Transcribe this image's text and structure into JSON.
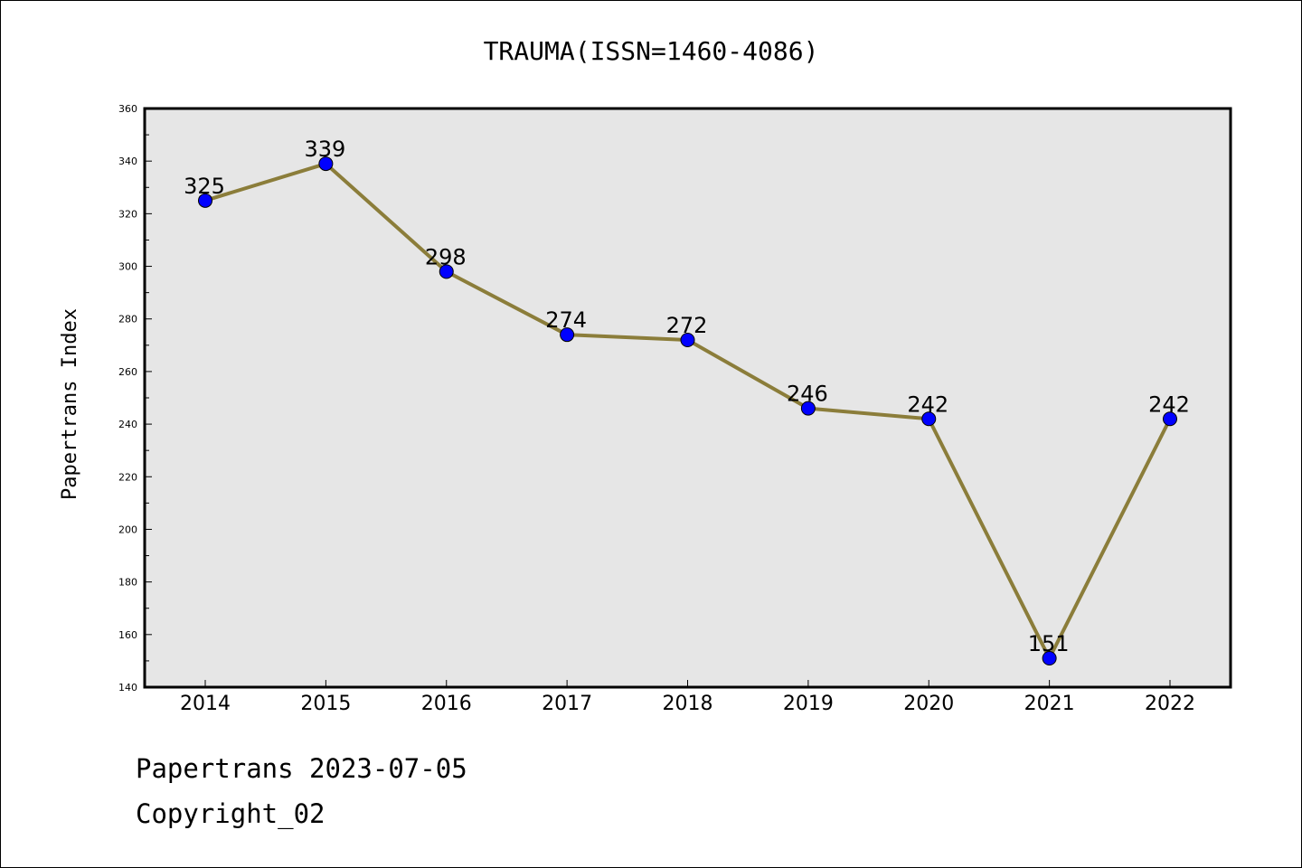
{
  "chart_data": {
    "type": "line",
    "title": "TRAUMA(ISSN=1460-4086)",
    "xlabel": "",
    "ylabel": "Papertrans Index",
    "categories": [
      "2014",
      "2015",
      "2016",
      "2017",
      "2018",
      "2019",
      "2020",
      "2021",
      "2022"
    ],
    "values": [
      325,
      339,
      298,
      274,
      272,
      246,
      242,
      151,
      242
    ],
    "data_labels": [
      "325",
      "339",
      "298",
      "274",
      "272",
      "246",
      "242",
      "151",
      "242"
    ],
    "ylim": [
      140,
      360
    ],
    "yticks": [
      140,
      160,
      180,
      200,
      220,
      240,
      260,
      280,
      300,
      320,
      340,
      360
    ],
    "grid": false,
    "legend": "none",
    "colors": {
      "line": "#8b7d3a",
      "marker": "#0000ff",
      "plot_background": "#e6e6e6"
    }
  },
  "footer": {
    "line1": "Papertrans 2023-07-05",
    "line2": "Copyright_02"
  }
}
